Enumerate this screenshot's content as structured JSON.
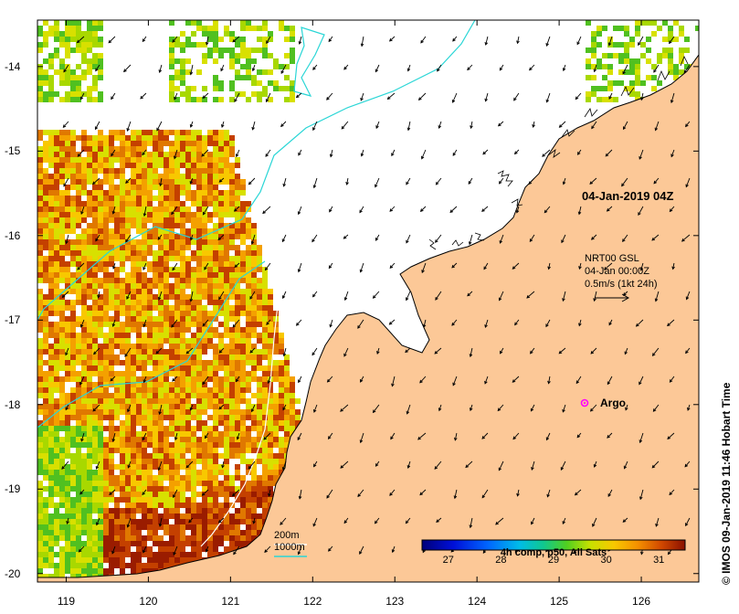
{
  "map": {
    "region": "NW Australia (Kimberley / Pilbara coast)",
    "lon_range": [
      118.65,
      126.7
    ],
    "lat_range": [
      -20.1,
      -13.45
    ],
    "x_ticks": [
      "119",
      "120",
      "121",
      "122",
      "123",
      "124",
      "125",
      "126"
    ],
    "x_tick_values": [
      119,
      120,
      121,
      122,
      123,
      124,
      125,
      126
    ],
    "y_ticks": [
      "-14",
      "-15",
      "-16",
      "-17",
      "-18",
      "-19",
      "-20"
    ],
    "y_tick_values": [
      -14,
      -15,
      -16,
      -17,
      -18,
      -19,
      -20
    ],
    "land_color": "#fcc897",
    "sst_colors": [
      "#9a1c00",
      "#c44000",
      "#e07800",
      "#f4a000",
      "#f8c800",
      "#d8e000",
      "#a8d800",
      "#50c020"
    ]
  },
  "timestamp": "04-Jan-2019 04Z",
  "current_legend": {
    "source": "NRT00 GSL",
    "time": "04-Jan 00:00Z",
    "scale": "0.5m/s (1kt 24h)"
  },
  "argo": {
    "label": "Argo",
    "lon": 125.3,
    "lat": -18.0,
    "color": "#ff00ff"
  },
  "isobaths": {
    "label_200": "200m",
    "label_1000": "1000m",
    "color_200": "#ffffff",
    "color_1000": "#2ad6d6"
  },
  "colorbar": {
    "title": "4h comp, p50, All Sats",
    "tick_labels": [
      "27",
      "28",
      "29",
      "30",
      "31"
    ],
    "tick_values": [
      27,
      28,
      29,
      30,
      31
    ],
    "range": [
      26.5,
      31.5
    ]
  },
  "credit": "© IMOS 09-Jan-2019 11:46 Hobart Time"
}
